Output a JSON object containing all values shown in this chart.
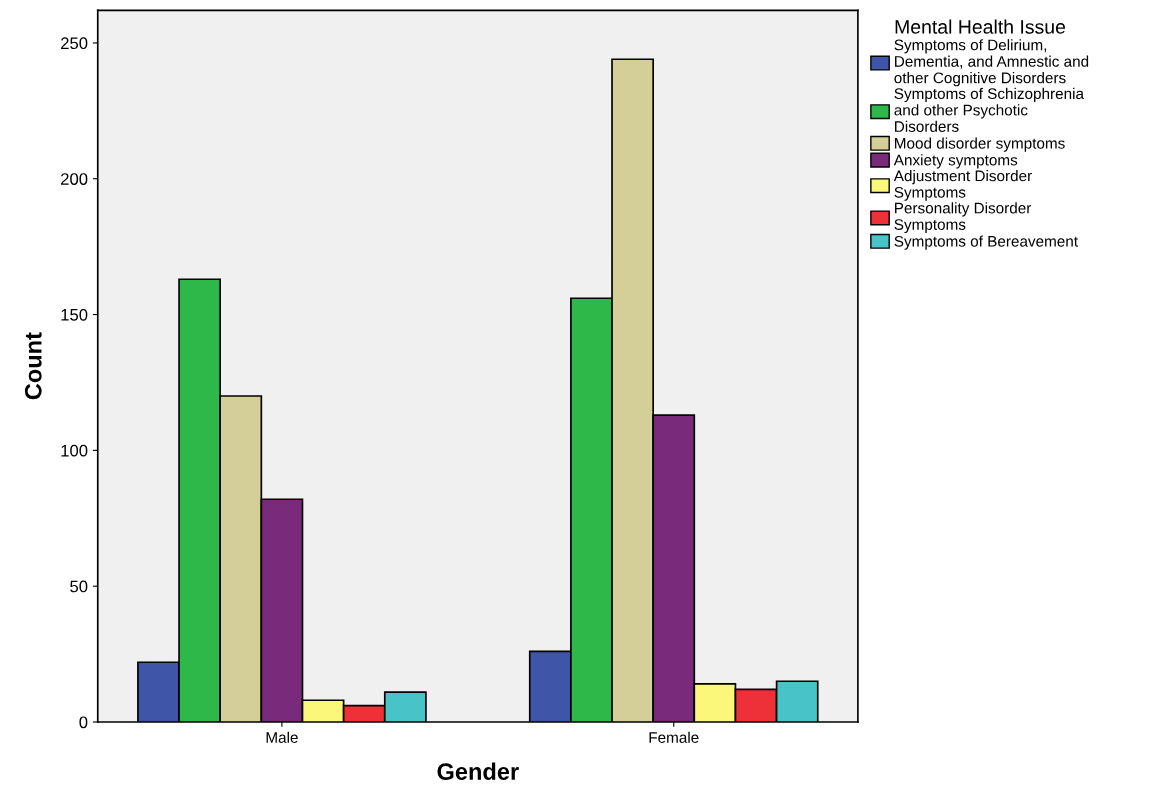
{
  "chart_data": {
    "type": "bar",
    "xlabel": "Gender",
    "ylabel": "Count",
    "legend_title": "Mental Health Issue",
    "categories": [
      "Male",
      "Female"
    ],
    "series": [
      {
        "name": "Symptoms of Delirium,\nDementia, and Amnestic and\nother Cognitive Disorders",
        "color": "#3e55a8",
        "values": [
          22,
          26
        ]
      },
      {
        "name": "Symptoms of Schizophrenia\nand other Psychotic\nDisorders",
        "color": "#2fb84a",
        "values": [
          163,
          156
        ]
      },
      {
        "name": "Mood disorder symptoms",
        "color": "#d4cf98",
        "values": [
          120,
          244
        ]
      },
      {
        "name": "Anxiety symptoms",
        "color": "#7a2a7a",
        "values": [
          82,
          113
        ]
      },
      {
        "name": "Adjustment Disorder\nSymptoms",
        "color": "#fbf77a",
        "values": [
          8,
          14
        ]
      },
      {
        "name": "Personality Disorder\nSymptoms",
        "color": "#ee3038",
        "values": [
          6,
          12
        ]
      },
      {
        "name": "Symptoms of Bereavement",
        "color": "#48c4c8",
        "values": [
          11,
          15
        ]
      }
    ],
    "ylim": [
      0,
      262
    ],
    "yticks": [
      0,
      50,
      100,
      150,
      200,
      250
    ],
    "grid": false,
    "legend": "right"
  }
}
